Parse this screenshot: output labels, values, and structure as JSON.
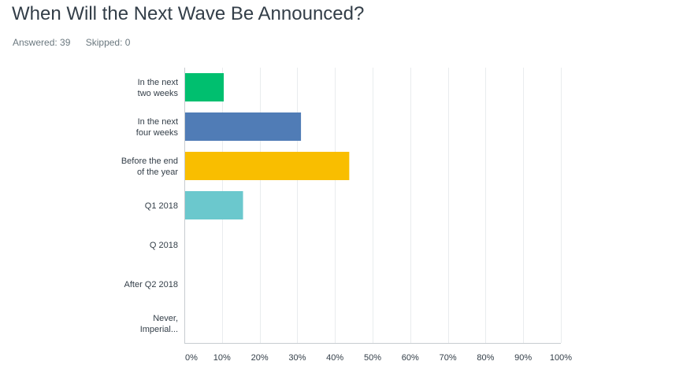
{
  "header": {
    "title": "When Will the Next Wave Be Announced?",
    "answered_label": "Answered: 39",
    "skipped_label": "Skipped: 0"
  },
  "chart_data": {
    "type": "bar",
    "orientation": "horizontal",
    "title": "",
    "xlabel": "",
    "ylabel": "",
    "xlim": [
      0,
      100
    ],
    "grid": true,
    "categories": [
      [
        "In the next",
        "two weeks"
      ],
      [
        "In the next",
        "four weeks"
      ],
      [
        "Before the end",
        "of the year"
      ],
      [
        "Q1 2018"
      ],
      [
        "Q 2018"
      ],
      [
        "After Q2 2018"
      ],
      [
        "Never,",
        "Imperial..."
      ]
    ],
    "values": [
      10.26,
      30.77,
      43.59,
      15.38,
      0,
      0,
      0
    ],
    "colors": [
      "#00bf6f",
      "#507cb6",
      "#f9be00",
      "#6bc8cd",
      "#c7ccd0",
      "#c7ccd0",
      "#c7ccd0"
    ],
    "ticks": [
      0,
      10,
      20,
      30,
      40,
      50,
      60,
      70,
      80,
      90,
      100
    ],
    "tick_labels": [
      "0%",
      "10%",
      "20%",
      "30%",
      "40%",
      "50%",
      "60%",
      "70%",
      "80%",
      "90%",
      "100%"
    ]
  }
}
